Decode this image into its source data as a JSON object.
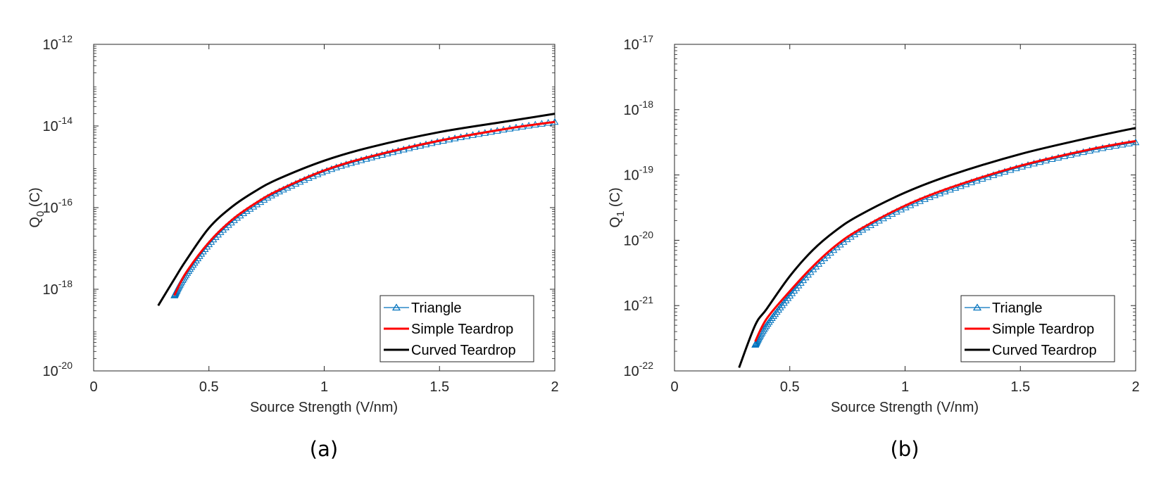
{
  "colors": {
    "triangle": "#0072BD",
    "simple": "#FF0000",
    "curved": "#000000",
    "axis": "#262626"
  },
  "chart_data": [
    {
      "type": "line",
      "caption": "(a)",
      "xlabel": "Source Strength (V/nm)",
      "ylabel_base": "Q",
      "ylabel_sub": "0",
      "ylabel_unit": " (C)",
      "xlim": [
        0,
        2
      ],
      "ylim_log10": [
        -20,
        -12
      ],
      "xticks": [
        {
          "value": 0,
          "label": "0"
        },
        {
          "value": 0.5,
          "label": "0.5"
        },
        {
          "value": 1,
          "label": "1"
        },
        {
          "value": 1.5,
          "label": "1.5"
        },
        {
          "value": 2,
          "label": "2"
        }
      ],
      "yticks": [
        {
          "value": -20,
          "base": "10",
          "exp": "-20"
        },
        {
          "value": -18,
          "base": "10",
          "exp": "-18"
        },
        {
          "value": -16,
          "base": "10",
          "exp": "-16"
        },
        {
          "value": -14,
          "base": "10",
          "exp": "-14"
        },
        {
          "value": -12,
          "base": "10",
          "exp": "-12"
        }
      ],
      "legend_position": "bottom-right",
      "series": [
        {
          "name": "Triangle",
          "marker": "triangle",
          "x": [
            0.35,
            0.4,
            0.5,
            0.6,
            0.7,
            0.8,
            1.0,
            1.2,
            1.5,
            1.8,
            2.0
          ],
          "log10_y": [
            -18.15,
            -17.65,
            -16.9,
            -16.35,
            -15.95,
            -15.62,
            -15.12,
            -14.78,
            -14.38,
            -14.07,
            -13.9
          ]
        },
        {
          "name": "Simple Teardrop",
          "marker": "none",
          "x": [
            0.35,
            0.4,
            0.5,
            0.6,
            0.7,
            0.8,
            1.0,
            1.2,
            1.5,
            1.8,
            2.0
          ],
          "log10_y": [
            -18.15,
            -17.6,
            -16.85,
            -16.3,
            -15.9,
            -15.58,
            -15.09,
            -14.75,
            -14.36,
            -14.06,
            -13.9
          ]
        },
        {
          "name": "Curved Teardrop",
          "marker": "none",
          "x": [
            0.28,
            0.35,
            0.4,
            0.5,
            0.6,
            0.7,
            0.8,
            1.0,
            1.2,
            1.5,
            1.8,
            2.0
          ],
          "log10_y": [
            -18.4,
            -17.75,
            -17.3,
            -16.5,
            -15.98,
            -15.6,
            -15.3,
            -14.85,
            -14.52,
            -14.15,
            -13.88,
            -13.7
          ]
        }
      ]
    },
    {
      "type": "line",
      "caption": "(b)",
      "xlabel": "Source Strength (V/nm)",
      "ylabel_base": "Q",
      "ylabel_sub": "1",
      "ylabel_unit": " (C)",
      "xlim": [
        0,
        2
      ],
      "ylim_log10": [
        -22,
        -17
      ],
      "xticks": [
        {
          "value": 0,
          "label": "0"
        },
        {
          "value": 0.5,
          "label": "0.5"
        },
        {
          "value": 1,
          "label": "1"
        },
        {
          "value": 1.5,
          "label": "1.5"
        },
        {
          "value": 2,
          "label": "2"
        }
      ],
      "yticks": [
        {
          "value": -22,
          "base": "10",
          "exp": "-22"
        },
        {
          "value": -21,
          "base": "10",
          "exp": "-21"
        },
        {
          "value": -20,
          "base": "10",
          "exp": "-20"
        },
        {
          "value": -19,
          "base": "10",
          "exp": "-19"
        },
        {
          "value": -18,
          "base": "10",
          "exp": "-18"
        },
        {
          "value": -17,
          "base": "10",
          "exp": "-17"
        }
      ],
      "legend_position": "bottom-right",
      "series": [
        {
          "name": "Triangle",
          "marker": "triangle",
          "x": [
            0.35,
            0.4,
            0.5,
            0.6,
            0.7,
            0.8,
            1.0,
            1.2,
            1.5,
            1.8,
            2.0
          ],
          "log10_y": [
            -21.6,
            -21.3,
            -20.85,
            -20.45,
            -20.12,
            -19.87,
            -19.5,
            -19.22,
            -18.88,
            -18.63,
            -18.5
          ]
        },
        {
          "name": "Simple Teardrop",
          "marker": "none",
          "x": [
            0.35,
            0.4,
            0.5,
            0.6,
            0.7,
            0.8,
            1.0,
            1.2,
            1.5,
            1.8,
            2.0
          ],
          "log10_y": [
            -21.55,
            -21.2,
            -20.78,
            -20.4,
            -20.08,
            -19.84,
            -19.47,
            -19.19,
            -18.86,
            -18.61,
            -18.48
          ]
        },
        {
          "name": "Curved Teardrop",
          "marker": "none",
          "x": [
            0.28,
            0.35,
            0.4,
            0.5,
            0.6,
            0.7,
            0.8,
            1.0,
            1.2,
            1.5,
            1.8,
            2.0
          ],
          "log10_y": [
            -21.95,
            -21.3,
            -21.05,
            -20.55,
            -20.15,
            -19.85,
            -19.62,
            -19.27,
            -19.0,
            -18.68,
            -18.43,
            -18.28
          ]
        }
      ]
    }
  ]
}
